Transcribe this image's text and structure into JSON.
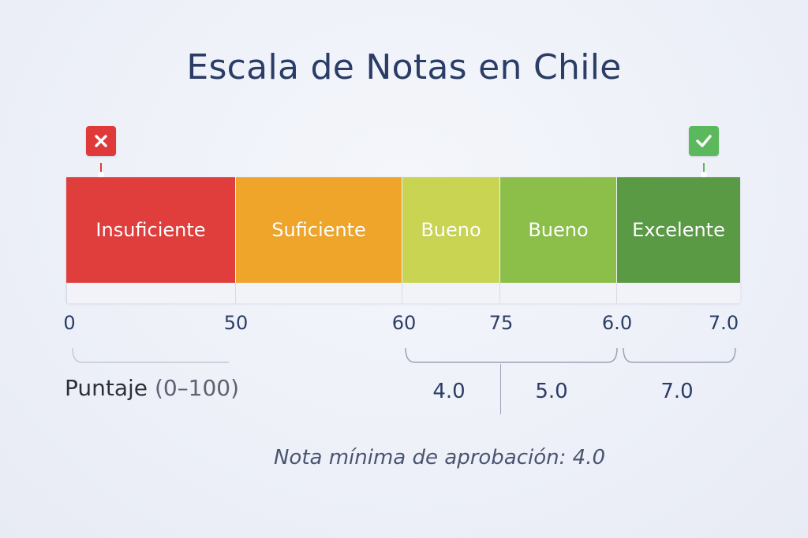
{
  "title": "Escala de Notas en Chile",
  "markers": {
    "fail": {
      "icon": "close-icon",
      "color": "#e0393a"
    },
    "pass": {
      "icon": "check-icon",
      "color": "#5cb85c"
    }
  },
  "segments": [
    {
      "label": "Insuficiente",
      "color": "#e03e3c"
    },
    {
      "label": "Suficiente",
      "color": "#eea52a"
    },
    {
      "label": "Bueno",
      "color": "#c8d452"
    },
    {
      "label": "Bueno",
      "color": "#8bbf4a"
    },
    {
      "label": "Excelente",
      "color": "#5a9a45"
    }
  ],
  "ticks": [
    "0",
    "50",
    "60",
    "75",
    "6.0",
    "7.0"
  ],
  "axis": {
    "name": "Puntaje",
    "range": "(0–100)"
  },
  "grades": [
    "4.0",
    "5.0",
    "7.0"
  ],
  "note": "Nota mínima de aprobación: 4.0"
}
